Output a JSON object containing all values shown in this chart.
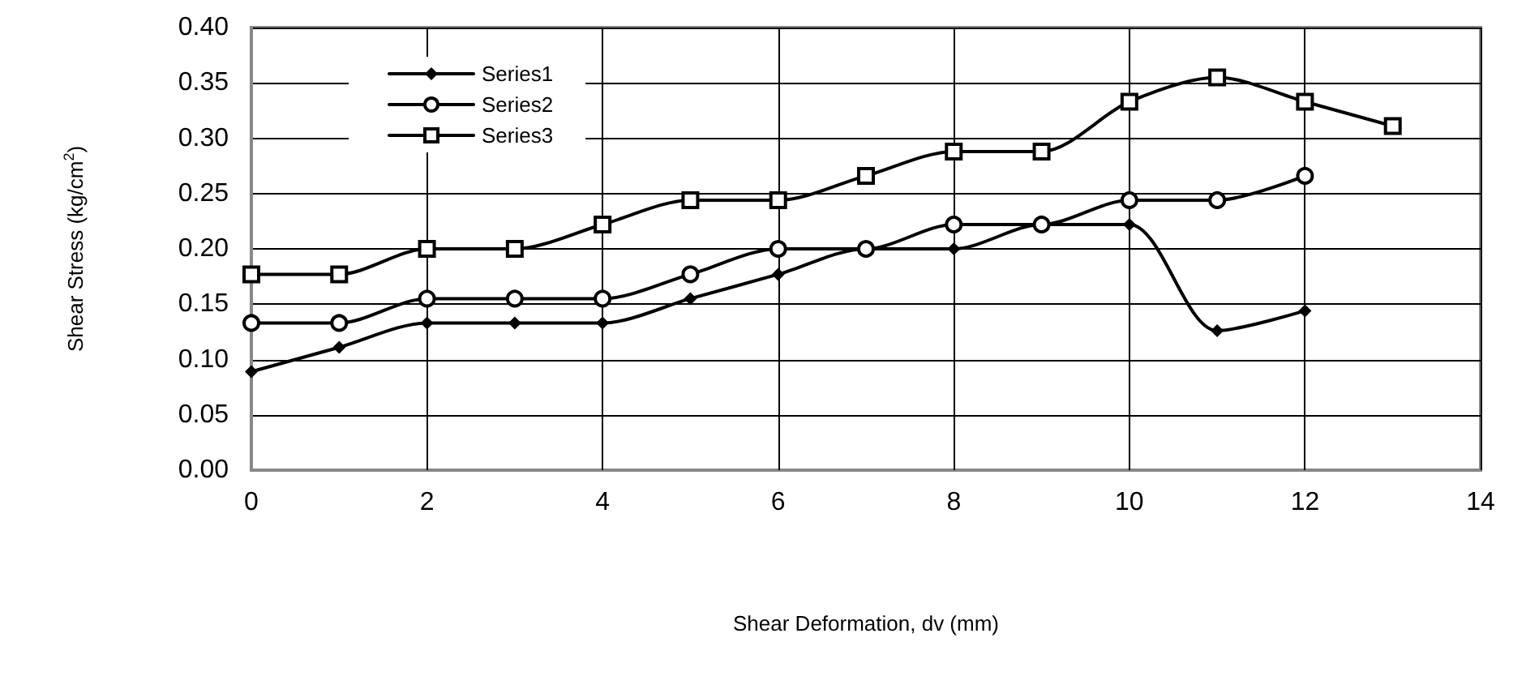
{
  "chart_data": {
    "type": "line",
    "xlabel": "Shear Deformation, dv (mm)",
    "ylabel": "Shear Stress (kg/cm$^{2}$)",
    "xlim": [
      0,
      14
    ],
    "xticks": [
      0,
      2,
      4,
      6,
      8,
      10,
      12,
      14
    ],
    "ylim": [
      0,
      0.4
    ],
    "yticks": [
      {
        "value": 0,
        "label": "0.00"
      },
      0.05,
      {
        "value": 0.1,
        "label": "0.10"
      },
      0.15,
      {
        "value": 0.2,
        "label": "0.20"
      },
      0.25,
      {
        "value": 0.3,
        "label": "0.30"
      },
      0.35,
      {
        "value": 0.4,
        "label": "0.40"
      }
    ],
    "grid": true,
    "legend": "top left",
    "line_style": "solid",
    "series": [
      {
        "name": "Series1",
        "color": "#000000",
        "marker": "diamond",
        "x": [
          0,
          1,
          2,
          3,
          4,
          5,
          6,
          7,
          8,
          9,
          10,
          11,
          12
        ],
        "values": [
          0.089,
          0.111,
          0.133,
          0.133,
          0.133,
          0.155,
          0.177,
          0.2,
          0.2,
          0.222,
          0.222,
          0.126,
          0.144
        ]
      },
      {
        "name": "Series2",
        "color": "#000000",
        "marker": "circle",
        "x": [
          0,
          1,
          2,
          3,
          4,
          5,
          6,
          7,
          8,
          9,
          10,
          11,
          12
        ],
        "values": [
          0.133,
          0.133,
          0.155,
          0.155,
          0.155,
          0.177,
          0.2,
          0.2,
          0.222,
          0.222,
          0.244,
          0.244,
          0.266
        ]
      },
      {
        "name": "Series3",
        "color": "#000000",
        "marker": "square",
        "x": [
          0,
          1,
          2,
          3,
          4,
          5,
          6,
          7,
          8,
          9,
          10,
          11,
          12,
          13
        ],
        "values": [
          0.177,
          0.177,
          0.2,
          0.2,
          0.222,
          0.244,
          0.244,
          0.266,
          0.288,
          0.288,
          0.333,
          0.355,
          0.333,
          0.311
        ]
      }
    ]
  }
}
